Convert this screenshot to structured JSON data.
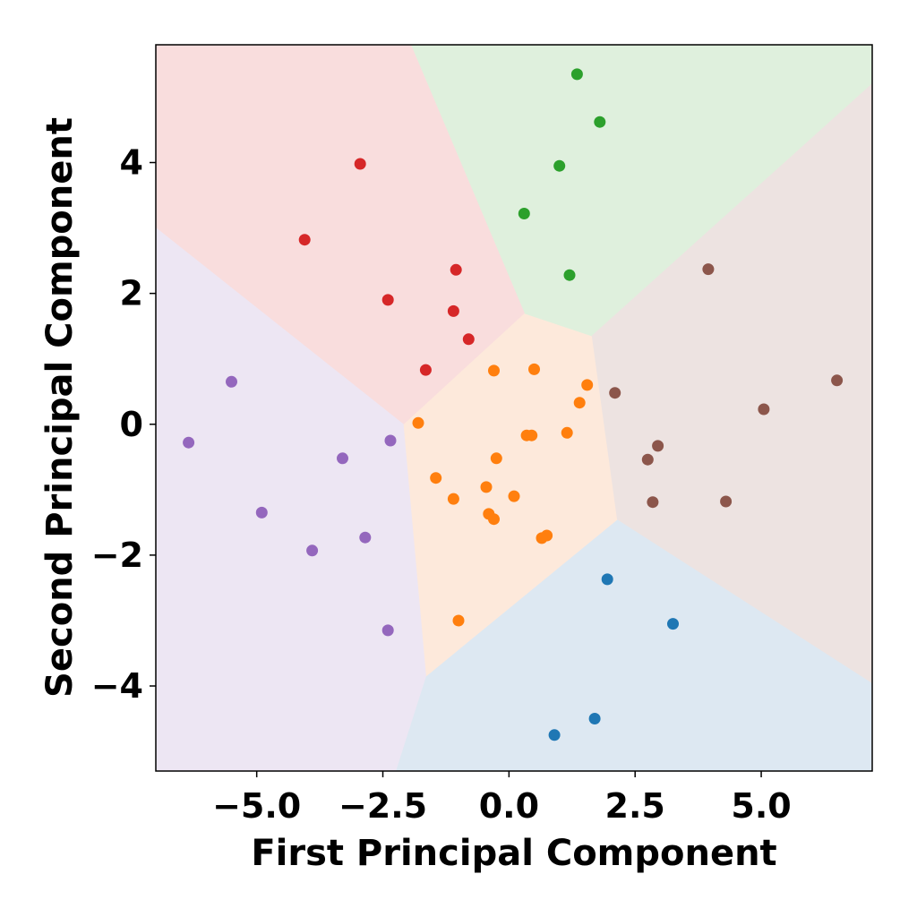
{
  "chart_data": {
    "type": "scatter",
    "title": "",
    "xlabel": "First Principal Component",
    "ylabel": "Second Principal Component",
    "xlim": [
      -7.0,
      7.2
    ],
    "ylim": [
      -5.3,
      5.8
    ],
    "grid": false,
    "legend": "none",
    "x_ticks": [
      {
        "value": -5.0,
        "label": "−5.0"
      },
      {
        "value": -2.5,
        "label": "−2.5"
      },
      {
        "value": 0.0,
        "label": "0.0"
      },
      {
        "value": 2.5,
        "label": "2.5"
      },
      {
        "value": 5.0,
        "label": "5.0"
      }
    ],
    "y_ticks": [
      {
        "value": -4,
        "label": "−4"
      },
      {
        "value": -2,
        "label": "−2"
      },
      {
        "value": 0,
        "label": "0"
      },
      {
        "value": 2,
        "label": "2"
      },
      {
        "value": 4,
        "label": "4"
      }
    ],
    "regions": [
      {
        "cluster": 0,
        "fill": "#dde8f2",
        "polygon": [
          [
            -2.25,
            -5.3
          ],
          [
            -1.65,
            -3.85
          ],
          [
            2.15,
            -1.45
          ],
          [
            7.2,
            -3.95
          ],
          [
            7.2,
            -5.3
          ]
        ]
      },
      {
        "cluster": 1,
        "fill": "#fde9db",
        "polygon": [
          [
            -2.1,
            0.0
          ],
          [
            -1.65,
            -3.85
          ],
          [
            2.15,
            -1.45
          ],
          [
            1.65,
            1.35
          ],
          [
            0.3,
            1.7
          ]
        ]
      },
      {
        "cluster": 2,
        "fill": "#dff0dd",
        "polygon": [
          [
            -1.95,
            5.8
          ],
          [
            7.2,
            5.8
          ],
          [
            7.2,
            5.2
          ],
          [
            1.65,
            1.35
          ],
          [
            0.3,
            1.7
          ]
        ]
      },
      {
        "cluster": 3,
        "fill": "#f9dddd",
        "polygon": [
          [
            -7.0,
            5.8
          ],
          [
            -1.95,
            5.8
          ],
          [
            0.3,
            1.7
          ],
          [
            -2.1,
            0.0
          ],
          [
            -7.0,
            3.0
          ]
        ]
      },
      {
        "cluster": 4,
        "fill": "#ede6f3",
        "polygon": [
          [
            -7.0,
            3.0
          ],
          [
            -2.1,
            0.0
          ],
          [
            -1.65,
            -3.85
          ],
          [
            -2.25,
            -5.3
          ],
          [
            -7.0,
            -5.3
          ]
        ]
      },
      {
        "cluster": 5,
        "fill": "#ede3e1",
        "polygon": [
          [
            7.2,
            5.2
          ],
          [
            1.65,
            1.35
          ],
          [
            2.15,
            -1.45
          ],
          [
            7.2,
            -3.95
          ]
        ]
      }
    ],
    "series": [
      {
        "cluster": 0,
        "color": "#1f77b4",
        "x": [
          1.95,
          3.25,
          1.7,
          0.9
        ],
        "y": [
          -2.37,
          -3.05,
          -4.5,
          -4.75
        ]
      },
      {
        "cluster": 1,
        "color": "#ff7f0e",
        "x": [
          -0.3,
          0.5,
          1.55,
          1.4,
          -1.8,
          0.35,
          0.45,
          1.15,
          -0.25,
          -1.45,
          -0.45,
          -1.1,
          0.1,
          -0.4,
          -0.3,
          0.75,
          0.65,
          -1.0
        ],
        "y": [
          0.82,
          0.84,
          0.6,
          0.33,
          0.02,
          -0.17,
          -0.17,
          -0.13,
          -0.52,
          -0.82,
          -0.96,
          -1.14,
          -1.1,
          -1.37,
          -1.45,
          -1.7,
          -1.74,
          -3.0
        ]
      },
      {
        "cluster": 2,
        "color": "#2ca02c",
        "x": [
          1.35,
          1.8,
          1.0,
          0.3,
          1.2
        ],
        "y": [
          5.35,
          4.62,
          3.95,
          3.22,
          2.28
        ]
      },
      {
        "cluster": 3,
        "color": "#d62728",
        "x": [
          -2.95,
          -4.05,
          -1.05,
          -2.4,
          -1.1,
          -0.8,
          -1.65
        ],
        "y": [
          3.98,
          2.82,
          2.36,
          1.9,
          1.73,
          1.3,
          0.83
        ]
      },
      {
        "cluster": 4,
        "color": "#9467bd",
        "x": [
          -5.5,
          -6.35,
          -2.35,
          -3.3,
          -4.9,
          -2.85,
          -3.9,
          -2.4
        ],
        "y": [
          0.65,
          -0.28,
          -0.25,
          -0.52,
          -1.35,
          -1.73,
          -1.93,
          -3.15
        ]
      },
      {
        "cluster": 5,
        "color": "#8c564b",
        "x": [
          3.95,
          6.5,
          2.1,
          5.05,
          2.95,
          2.75,
          2.85,
          4.3
        ],
        "y": [
          2.37,
          0.67,
          0.48,
          0.23,
          -0.33,
          -0.54,
          -1.19,
          -1.18
        ]
      }
    ]
  }
}
